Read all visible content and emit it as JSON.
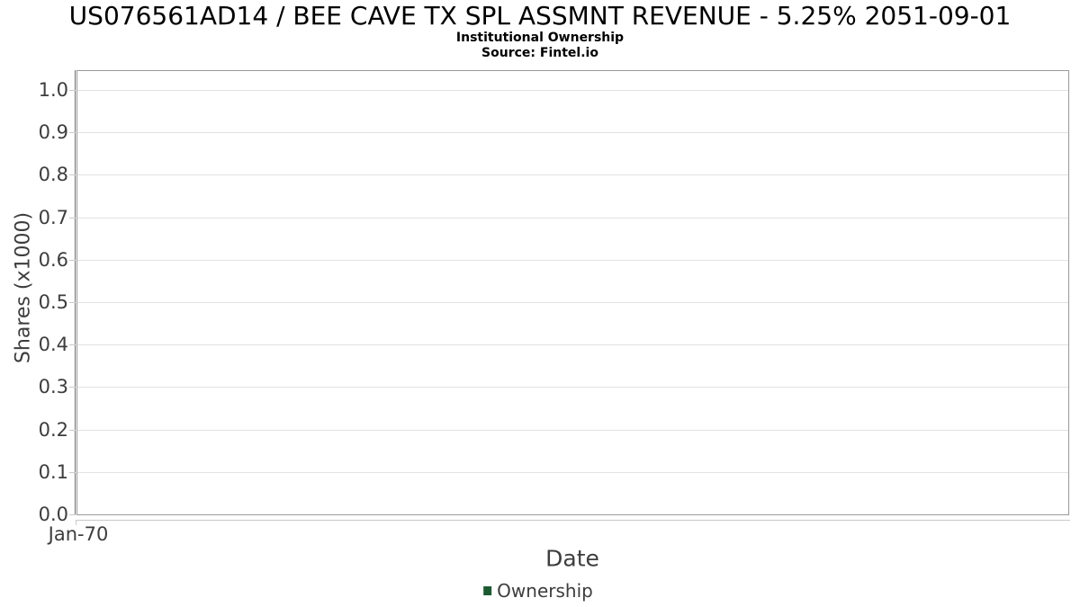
{
  "header": {
    "title": "US076561AD14 / BEE CAVE TX SPL ASSMNT REVENUE - 5.25% 2051-09-01",
    "subtitle": "Institutional Ownership",
    "source": "Source: Fintel.io"
  },
  "colors": {
    "legend_marker": "#1d5a31",
    "gridline": "#e2e2e2",
    "plot_border": "#9a9a9a",
    "y_axis_line": "#6e6e6e",
    "tick": "#c9c9c9",
    "axis_text": "#3d3d3d",
    "title_text": "#000000",
    "background": "#ffffff"
  },
  "legend": {
    "items": [
      {
        "label": "Ownership",
        "color": "#1d5a31"
      }
    ]
  },
  "chart_data": {
    "type": "line",
    "title": "US076561AD14 / BEE CAVE TX SPL ASSMNT REVENUE - 5.25% 2051-09-01",
    "subtitle": "Institutional Ownership",
    "source": "Source: Fintel.io",
    "xlabel": "Date",
    "ylabel": "Shares (x1000)",
    "ylim": [
      0.0,
      1.047
    ],
    "y_ticks": [
      "0.0",
      "0.1",
      "0.2",
      "0.3",
      "0.4",
      "0.5",
      "0.6",
      "0.7",
      "0.8",
      "0.9",
      "1.0"
    ],
    "x_ticks": [
      "Jan-70"
    ],
    "grid": true,
    "legend_position": "bottom",
    "series": [
      {
        "name": "Ownership",
        "color": "#1d5a31",
        "x": [],
        "values": []
      }
    ]
  }
}
